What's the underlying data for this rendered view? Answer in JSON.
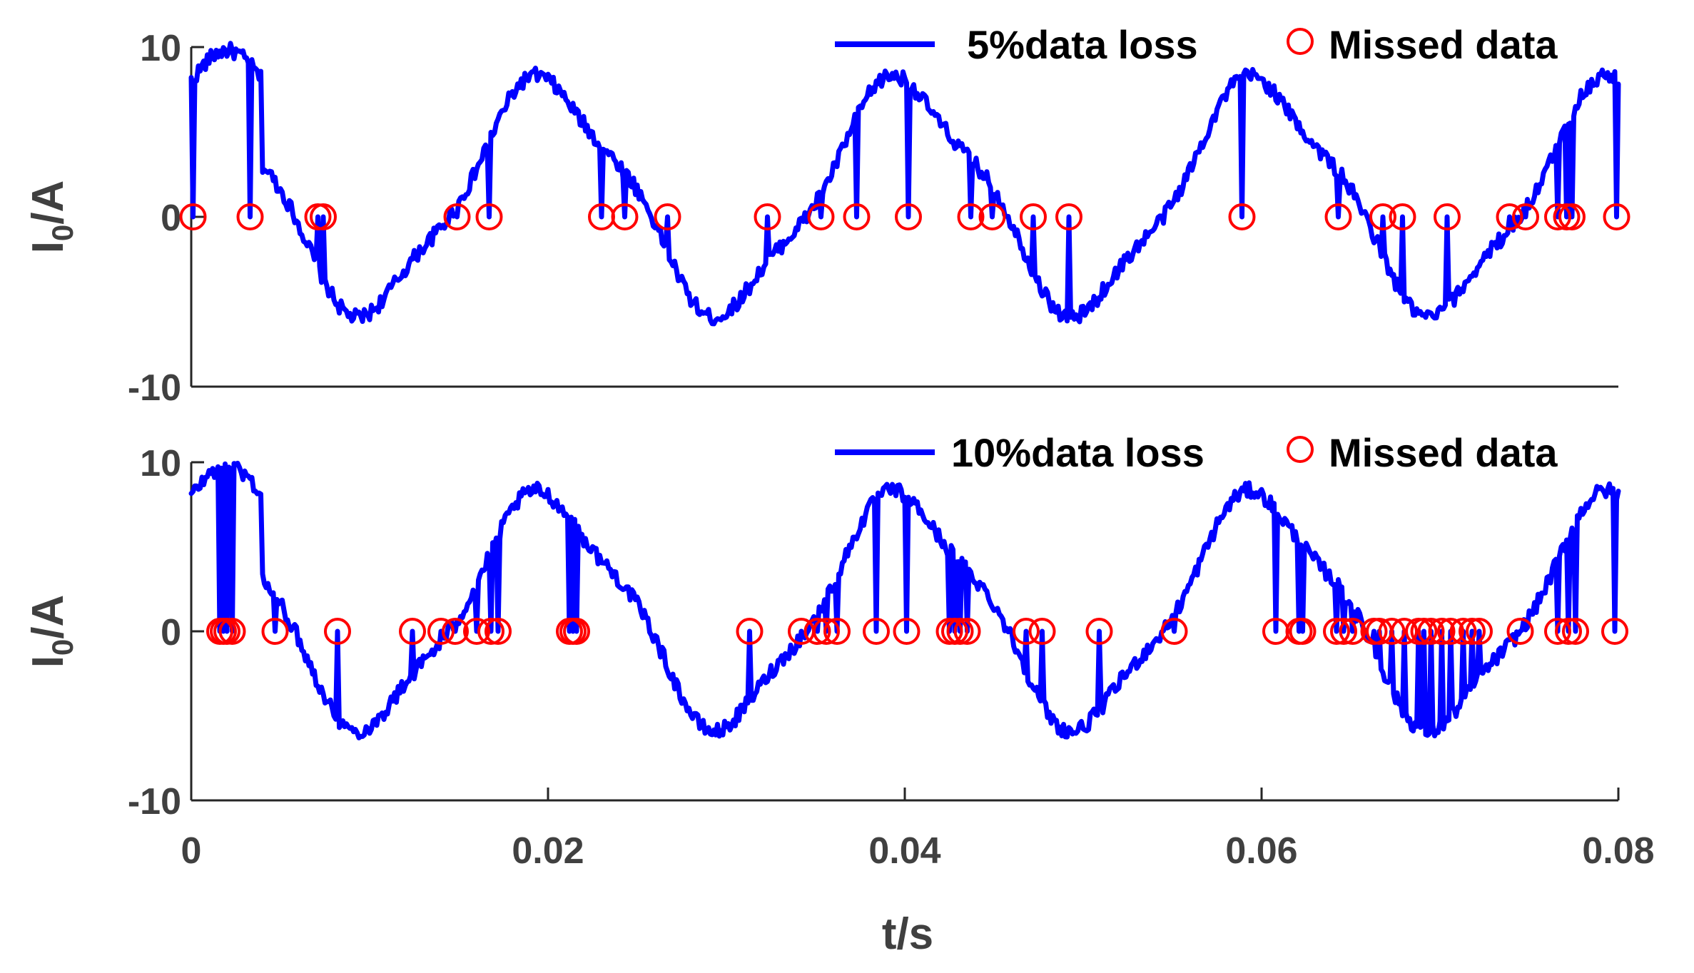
{
  "colors": {
    "series": "#0000ff",
    "missed": "#ff0000",
    "axis": "#262626",
    "text": "#404040"
  },
  "chart_data": [
    {
      "type": "line",
      "panel": "top",
      "xlabel": "",
      "ylabel_main": "I",
      "ylabel_sub": "0",
      "ylabel_rest": "/A",
      "xlim": [
        0,
        0.08
      ],
      "ylim": [
        -10,
        10
      ],
      "yticks": [
        10,
        0,
        -10
      ],
      "ytick_labels": [
        "10",
        "0",
        "-10"
      ],
      "legend": {
        "position": "top-right",
        "line_label": "5%data loss",
        "marker_label": "Missed data"
      },
      "series": [
        {
          "name": "5%data loss",
          "kind": "line",
          "values": []
        },
        {
          "name": "Missed data",
          "kind": "marker",
          "value": 0,
          "x": [
            0.0001,
            0.0033,
            0.0071,
            0.0074,
            0.0149,
            0.0167,
            0.023,
            0.0243,
            0.0267,
            0.0323,
            0.0353,
            0.0373,
            0.0402,
            0.0437,
            0.0449,
            0.0472,
            0.0492,
            0.0589,
            0.0643,
            0.0668,
            0.0679,
            0.0704,
            0.0739,
            0.0748,
            0.0766,
            0.0771,
            0.0774,
            0.0799
          ]
        }
      ]
    },
    {
      "type": "line",
      "panel": "bottom",
      "xlabel": "t/s",
      "ylabel_main": "I",
      "ylabel_sub": "0",
      "ylabel_rest": "/A",
      "xlim": [
        0,
        0.08
      ],
      "ylim": [
        -10,
        10
      ],
      "yticks": [
        10,
        0,
        -10
      ],
      "ytick_labels": [
        "10",
        "0",
        "-10"
      ],
      "xticks": [
        0,
        0.02,
        0.04,
        0.06,
        0.08
      ],
      "xtick_labels": [
        "0",
        "0.02",
        "0.04",
        "0.06",
        "0.08"
      ],
      "legend": {
        "position": "top-right",
        "line_label": "10%data loss",
        "marker_label": "Missed data"
      },
      "series": [
        {
          "name": "10%data loss",
          "kind": "line",
          "values": []
        },
        {
          "name": "Missed data",
          "kind": "marker",
          "value": 0,
          "x": [
            0.0016,
            0.0018,
            0.002,
            0.0023,
            0.0047,
            0.0082,
            0.0124,
            0.014,
            0.0148,
            0.016,
            0.0168,
            0.0172,
            0.0212,
            0.0214,
            0.0216,
            0.0313,
            0.0342,
            0.0351,
            0.0356,
            0.0362,
            0.0384,
            0.0401,
            0.0425,
            0.0428,
            0.0431,
            0.0435,
            0.0468,
            0.0477,
            0.0509,
            0.0551,
            0.0608,
            0.0621,
            0.0623,
            0.0642,
            0.0646,
            0.0651,
            0.0663,
            0.0666,
            0.0673,
            0.068,
            0.0688,
            0.0691,
            0.0695,
            0.0701,
            0.0706,
            0.0713,
            0.0718,
            0.0722,
            0.0745,
            0.0766,
            0.0772,
            0.0776,
            0.0798
          ]
        }
      ]
    }
  ]
}
